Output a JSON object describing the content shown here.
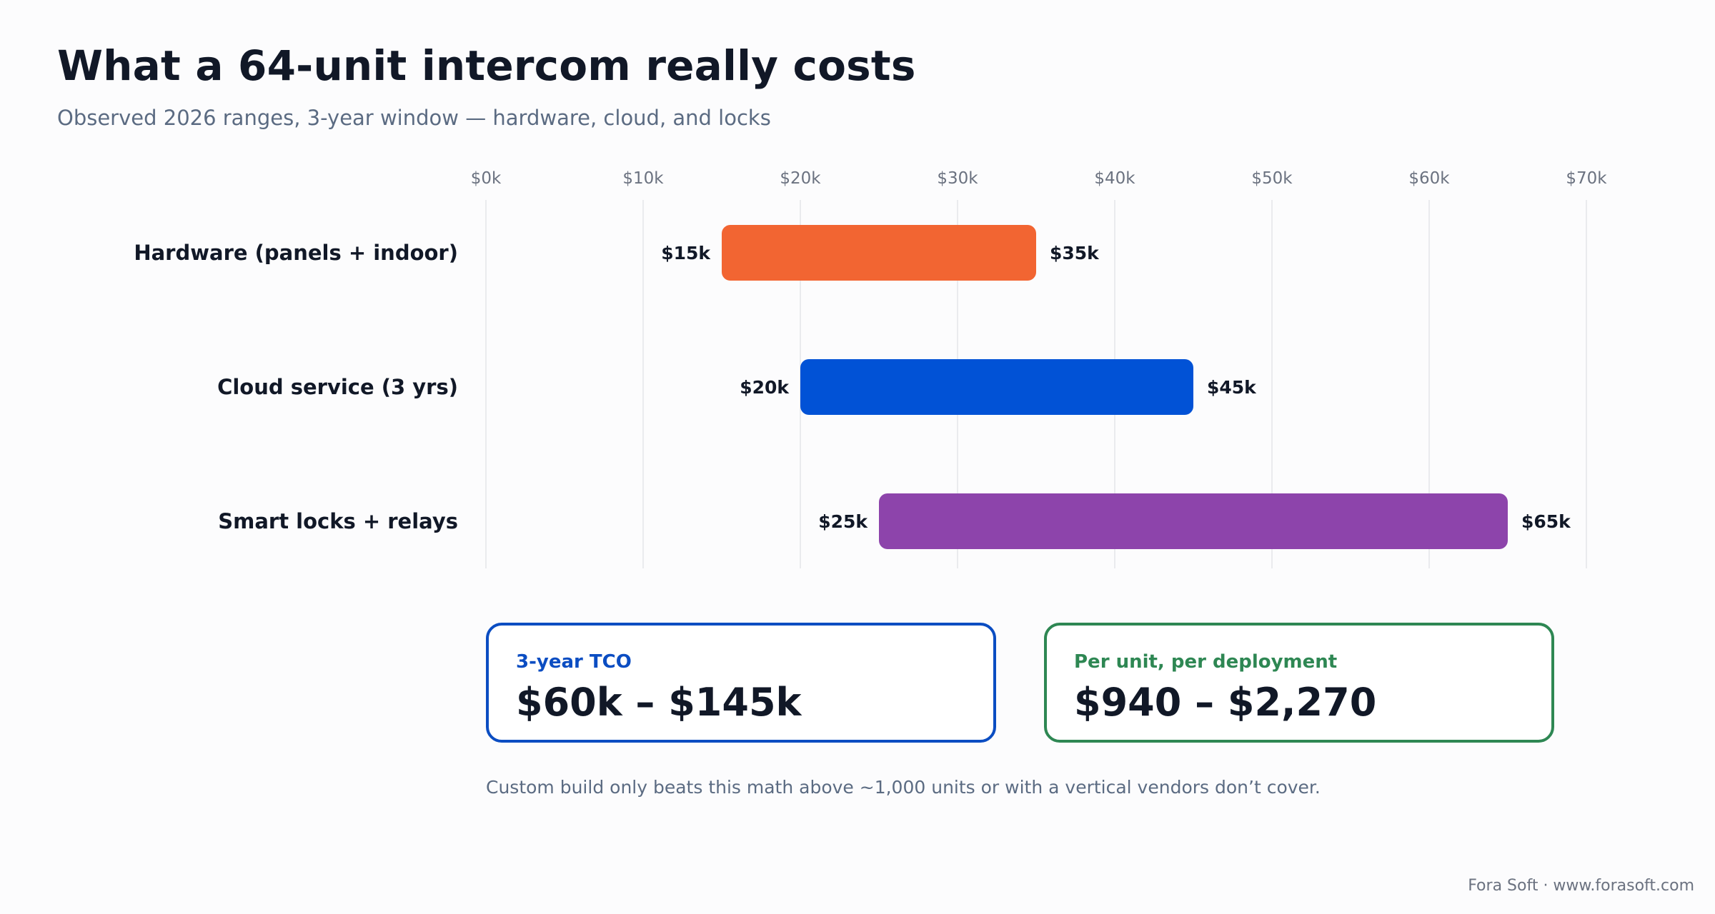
{
  "page": {
    "title": "What a 64-unit intercom really costs",
    "subtitle": "Observed 2026 ranges, 3-year window — hardware, cloud, and locks"
  },
  "chart_data": {
    "type": "bar",
    "orientation": "horizontal",
    "style": "floating range",
    "x_axis": {
      "min": 0,
      "max": 70000,
      "position": "top",
      "tick_labels": [
        "$0k",
        "$10k",
        "$20k",
        "$30k",
        "$40k",
        "$50k",
        "$60k",
        "$70k"
      ],
      "tick_values": [
        0,
        10000,
        20000,
        30000,
        40000,
        50000,
        60000,
        70000
      ]
    },
    "grid": true,
    "legend": "none",
    "categories": [
      "Hardware (panels + indoor)",
      "Cloud service (3 yrs)",
      "Smart locks + relays"
    ],
    "ranges": [
      {
        "low": 15000,
        "high": 35000,
        "low_label": "$15k",
        "high_label": "$35k",
        "color": "#f26532"
      },
      {
        "low": 20000,
        "high": 45000,
        "low_label": "$20k",
        "high_label": "$45k",
        "color": "#0152d6"
      },
      {
        "low": 25000,
        "high": 65000,
        "low_label": "$25k",
        "high_label": "$65k",
        "color": "#8d44ab"
      }
    ]
  },
  "cards": {
    "tco": {
      "label": "3-year TCO",
      "value": "$60k – $145k",
      "accent": "#0b4dc2"
    },
    "per_unit": {
      "label": "Per unit, per deployment",
      "value": "$940 – $2,270",
      "accent": "#2e8753"
    }
  },
  "footnote": "Custom build only beats this math above ~1,000 units or with a vertical vendors don’t cover.",
  "credit": "Fora Soft · www.forasoft.com"
}
